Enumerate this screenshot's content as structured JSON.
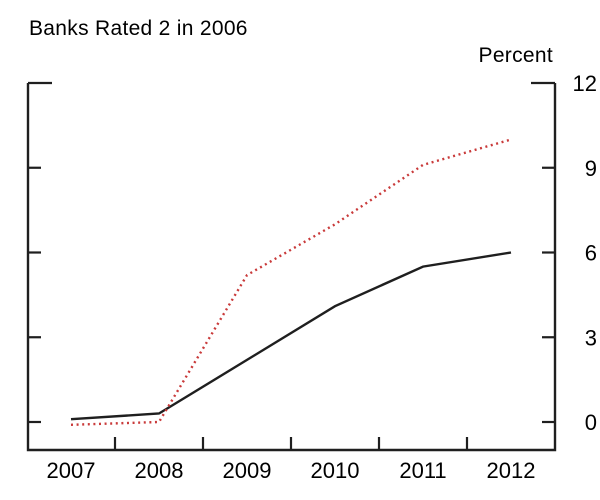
{
  "figure": {
    "title": "Banks Rated 2 in 2006",
    "unit_label": "Percent"
  },
  "chart_data": {
    "type": "line",
    "title": "Banks Rated 2 in 2006",
    "xlabel": "",
    "ylabel": "Percent",
    "categories": [
      "2007",
      "2008",
      "2009",
      "2010",
      "2011",
      "2012"
    ],
    "series": [
      {
        "name": "solid-black-line",
        "line_style": "solid",
        "color": "#1f1f1f",
        "values": [
          0.1,
          0.3,
          2.2,
          4.1,
          5.5,
          6.0
        ]
      },
      {
        "name": "dotted-red-line",
        "line_style": "dotted",
        "color": "#c93a3a",
        "values": [
          -0.1,
          0.0,
          5.2,
          7.0,
          9.1,
          10.0
        ]
      }
    ],
    "ylim": [
      0,
      12
    ],
    "y_ticks": [
      0,
      3,
      6,
      9,
      12
    ],
    "y_tick_labels": [
      "0",
      "3",
      "6",
      "9",
      "12"
    ],
    "grid": false,
    "legend_position": "none",
    "value_axis_side": "right"
  },
  "colors": {
    "background": "#ffffff",
    "axis": "#1f1f1f",
    "text": "#000000",
    "line_black": "#1f1f1f",
    "line_red": "#c93a3a"
  }
}
